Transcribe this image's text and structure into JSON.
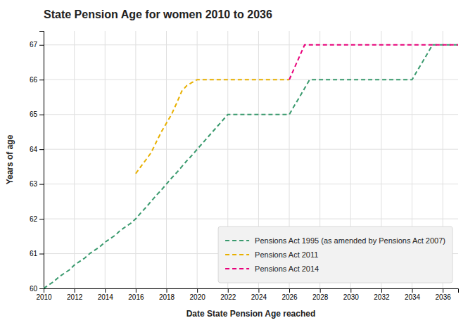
{
  "chart_data": {
    "type": "line",
    "title": "State Pension Age for women 2010 to 2036",
    "xlabel": "Date State Pension Age reached",
    "ylabel": "Years of age",
    "xlim": [
      2010,
      2037
    ],
    "ylim": [
      60,
      67.4
    ],
    "xticks": [
      2010,
      2012,
      2014,
      2016,
      2018,
      2020,
      2022,
      2024,
      2026,
      2028,
      2030,
      2032,
      2034,
      2036
    ],
    "yticks": [
      60,
      61,
      62,
      63,
      64,
      65,
      66,
      67
    ],
    "grid": true,
    "legend": "lower right",
    "series": [
      {
        "name": "Pensions Act 1995 (as amended by Pensions Act 2007)",
        "color": "#3a9a6e",
        "line_style": "dashed",
        "x": [
          2010.0,
          2010.33,
          2010.67,
          2011.0,
          2011.33,
          2011.67,
          2012.0,
          2012.33,
          2012.67,
          2013.0,
          2013.33,
          2013.67,
          2014.0,
          2014.33,
          2014.67,
          2015.0,
          2015.33,
          2015.67,
          2016.0,
          2016.33,
          2016.67,
          2017.0,
          2017.33,
          2017.67,
          2018.0,
          2018.33,
          2018.67,
          2019.0,
          2019.33,
          2019.67,
          2020.0,
          2020.5,
          2021.0,
          2021.5,
          2022.0,
          2022.5,
          2023.0,
          2023.5,
          2024.0,
          2024.5,
          2025.0,
          2025.5,
          2026.0,
          2026.33,
          2026.67,
          2027.0,
          2027.33,
          2027.67,
          2028.0,
          2029.0,
          2030.0,
          2031.0,
          2032.0,
          2033.0,
          2034.0,
          2034.33,
          2034.67,
          2035.0,
          2035.33,
          2035.67,
          2036.0,
          2037.0
        ],
        "values": [
          60.0,
          60.1,
          60.2,
          60.33,
          60.43,
          60.53,
          60.67,
          60.77,
          60.87,
          61.0,
          61.1,
          61.2,
          61.33,
          61.43,
          61.53,
          61.67,
          61.77,
          61.87,
          62.0,
          62.17,
          62.33,
          62.5,
          62.67,
          62.83,
          63.0,
          63.17,
          63.33,
          63.5,
          63.67,
          63.83,
          64.0,
          64.25,
          64.5,
          64.75,
          65.0,
          65.0,
          65.0,
          65.0,
          65.0,
          65.0,
          65.0,
          65.0,
          65.0,
          65.25,
          65.5,
          65.75,
          66.0,
          66.0,
          66.0,
          66.0,
          66.0,
          66.0,
          66.0,
          66.0,
          66.0,
          66.25,
          66.5,
          66.75,
          67.0,
          67.0,
          67.0,
          67.0
        ]
      },
      {
        "name": "Pensions Act 2011",
        "color": "#e8b000",
        "line_style": "dashed",
        "x": [
          2016.0,
          2016.33,
          2016.67,
          2017.0,
          2017.33,
          2017.67,
          2018.0,
          2018.33,
          2018.67,
          2019.0,
          2019.33,
          2019.67,
          2020.0,
          2021.0,
          2022.0,
          2023.0,
          2024.0,
          2025.0,
          2026.0
        ],
        "values": [
          63.3,
          63.5,
          63.7,
          63.9,
          64.2,
          64.5,
          64.75,
          65.0,
          65.33,
          65.67,
          65.83,
          65.92,
          66.0,
          66.0,
          66.0,
          66.0,
          66.0,
          66.0,
          66.0
        ]
      },
      {
        "name": "Pensions Act 2014",
        "color": "#e8007a",
        "line_style": "dashed",
        "x": [
          2026.0,
          2026.33,
          2026.67,
          2027.0,
          2027.33,
          2027.5,
          2028.0,
          2029.0,
          2030.0,
          2031.0,
          2032.0,
          2033.0,
          2034.0,
          2035.0,
          2036.0,
          2037.0
        ],
        "values": [
          66.0,
          66.33,
          66.67,
          67.0,
          67.0,
          67.0,
          67.0,
          67.0,
          67.0,
          67.0,
          67.0,
          67.0,
          67.0,
          67.0,
          67.0,
          67.0
        ]
      }
    ]
  }
}
